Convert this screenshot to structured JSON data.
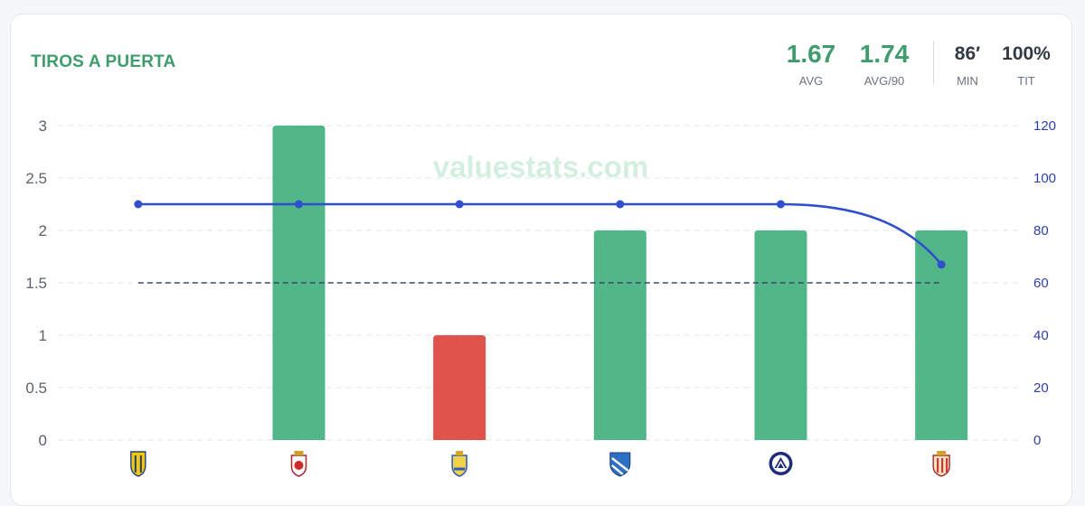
{
  "header": {
    "title": "TIROS A PUERTA",
    "stats": [
      {
        "value": "1.67",
        "label": "AVG"
      },
      {
        "value": "1.74",
        "label": "AVG/90"
      },
      {
        "value": "86′",
        "label": "MIN"
      },
      {
        "value": "100%",
        "label": "TIT"
      }
    ]
  },
  "watermark": "valuestats.com",
  "colors": {
    "bar_above": "#52b788",
    "bar_below": "#e0524c",
    "minutes_line": "#2f4fcf",
    "avg_line": "#3a4a6b",
    "title": "#3f9c6d",
    "right_axis": "#2f3fa8"
  },
  "chart_data": {
    "type": "bar",
    "categories_icons": [
      "cadiz-crest-icon",
      "rayo-majadahonda-crest-icon",
      "las-palmas-crest-icon",
      "malaga-crest-icon",
      "andorra-crest-icon",
      "almeria-crest-icon"
    ],
    "series": [
      {
        "values": [
          0,
          3,
          1,
          2,
          2,
          2
        ],
        "axis": "left"
      },
      {
        "values": [
          90,
          90,
          90,
          90,
          90,
          67
        ],
        "axis": "right",
        "type": "line"
      }
    ],
    "reference_line": 1.5,
    "ylim_left": [
      0,
      3
    ],
    "yticks_left": [
      "0",
      "0.5",
      "1",
      "1.5",
      "2",
      "2.5",
      "3"
    ],
    "ylim_right": [
      0,
      120
    ],
    "yticks_right": [
      "0",
      "20",
      "40",
      "60",
      "80",
      "100",
      "120"
    ],
    "grid": true
  }
}
